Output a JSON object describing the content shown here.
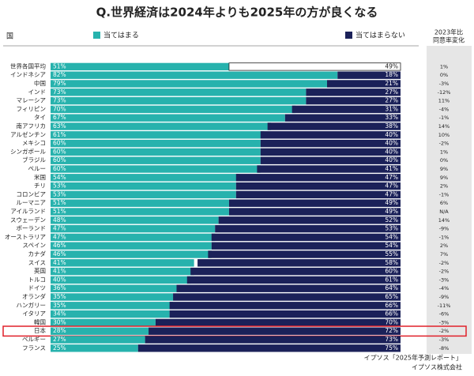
{
  "chart_data": {
    "type": "stacked_bar_horizontal",
    "title": "Q.世界経済は2024年よりも2025年の方が良くなる",
    "category_header": "国",
    "categories": [
      "世界各国平均",
      "インドネシア",
      "中国",
      "インド",
      "マレーシア",
      "フィリピン",
      "タイ",
      "南アフリカ",
      "アルゼンチン",
      "メキシコ",
      "シンガポール",
      "ブラジル",
      "ペルー",
      "米国",
      "チリ",
      "コロンビア",
      "ルーマニア",
      "アイルランド",
      "スウェーデン",
      "ポーランド",
      "オーストラリア",
      "スペイン",
      "カナダ",
      "スイス",
      "英国",
      "トルコ",
      "ドイツ",
      "オランダ",
      "ハンガリー",
      "イタリア",
      "韓国",
      "日本",
      "ベルギー",
      "フランス"
    ],
    "series": [
      {
        "name": "当てはまる",
        "color": "#27b2ad",
        "values": [
          51,
          82,
          79,
          73,
          73,
          70,
          67,
          63,
          61,
          60,
          60,
          60,
          60,
          54,
          53,
          53,
          51,
          51,
          48,
          47,
          47,
          46,
          46,
          41,
          41,
          40,
          36,
          35,
          35,
          34,
          30,
          28,
          27,
          25
        ],
        "value_labels": [
          "51%",
          "82%",
          "79%",
          "73%",
          "73%",
          "70%",
          "67%",
          "63%",
          "61%",
          "60%",
          "60%",
          "60%",
          "60%",
          "54%",
          "53%",
          "53%",
          "51%",
          "51%",
          "48%",
          "47%",
          "47%",
          "46%",
          "46%",
          "41%",
          "41%",
          "40%",
          "36%",
          "35%",
          "35%",
          "34%",
          "30%",
          "28%",
          "27%",
          "25%"
        ]
      },
      {
        "name": "当てはまらない",
        "color": "#1b2159",
        "values": [
          49,
          18,
          21,
          27,
          27,
          31,
          33,
          38,
          40,
          40,
          40,
          40,
          41,
          47,
          47,
          47,
          49,
          49,
          52,
          53,
          54,
          54,
          55,
          58,
          60,
          61,
          64,
          65,
          66,
          66,
          70,
          72,
          73,
          75
        ],
        "value_labels": [
          "49%",
          "18%",
          "21%",
          "27%",
          "27%",
          "31%",
          "33%",
          "38%",
          "40%",
          "40%",
          "40%",
          "40%",
          "41%",
          "47%",
          "47%",
          "47%",
          "49%",
          "49%",
          "52%",
          "53%",
          "54%",
          "54%",
          "55%",
          "58%",
          "60%",
          "61%",
          "64%",
          "65%",
          "66%",
          "66%",
          "70%",
          "72%",
          "73%",
          "75%"
        ]
      }
    ],
    "change_header": [
      "2023年比",
      "同意率変化"
    ],
    "change_values": [
      1,
      0,
      -3,
      -12,
      11,
      -4,
      -1,
      14,
      10,
      -2,
      1,
      0,
      9,
      9,
      2,
      -1,
      6,
      null,
      14,
      -9,
      -1,
      2,
      7,
      -2,
      -2,
      -3,
      -4,
      -9,
      -11,
      -6,
      -3,
      -2,
      -3,
      -8
    ],
    "change_labels": [
      "1%",
      "0%",
      "-3%",
      "-12%",
      "11%",
      "-4%",
      "-1%",
      "14%",
      "10%",
      "-2%",
      "1%",
      "0%",
      "9%",
      "9%",
      "2%",
      "-1%",
      "6%",
      "N/A",
      "14%",
      "-9%",
      "-1%",
      "2%",
      "7%",
      "-2%",
      "-2%",
      "-3%",
      "-4%",
      "-9%",
      "-11%",
      "-6%",
      "-3%",
      "-2%",
      "-3%",
      "-8%"
    ],
    "xlim": [
      0,
      100
    ],
    "outlined_category": "世界各国平均",
    "highlight_category": "日本",
    "highlight_color": "#e0202a",
    "source": [
      "イプソス「2025年予測レポート」",
      "イプソス株式会社"
    ]
  }
}
